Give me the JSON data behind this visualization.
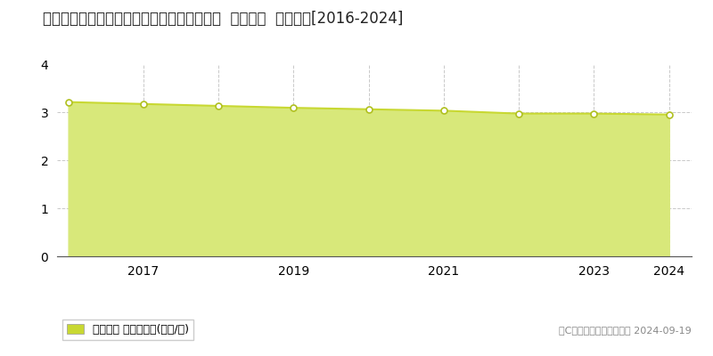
{
  "title": "福島県西白河郡泉崎村大字踏瀮字踏瀮３０番  基準地価  地価推移[2016-2024]",
  "years": [
    2016,
    2017,
    2018,
    2019,
    2020,
    2021,
    2022,
    2023,
    2024
  ],
  "values": [
    3.21,
    3.17,
    3.13,
    3.09,
    3.06,
    3.03,
    2.97,
    2.97,
    2.95
  ],
  "line_color": "#c8d832",
  "fill_color": "#d8e87a",
  "fill_alpha": 1.0,
  "marker_color": "#ffffff",
  "marker_edge_color": "#b0c020",
  "marker_size": 5,
  "ylim": [
    0,
    4
  ],
  "yticks": [
    0,
    1,
    2,
    3,
    4
  ],
  "xticks": [
    2017,
    2019,
    2021,
    2023,
    2024
  ],
  "vgrid_years": [
    2017,
    2018,
    2019,
    2020,
    2021,
    2022,
    2023,
    2024
  ],
  "hgrid_vals": [
    1,
    2,
    3
  ],
  "grid_color": "#bbbbbb",
  "background_color": "#ffffff",
  "plot_bg_color": "#ffffff",
  "legend_label": "基準地価 平均坪単価(万円/坪)",
  "legend_marker_color": "#c8d832",
  "copyright_text": "（C）土地価格ドットコム 2024-09-19",
  "title_fontsize": 12,
  "axis_fontsize": 10,
  "legend_fontsize": 9,
  "copyright_fontsize": 8
}
